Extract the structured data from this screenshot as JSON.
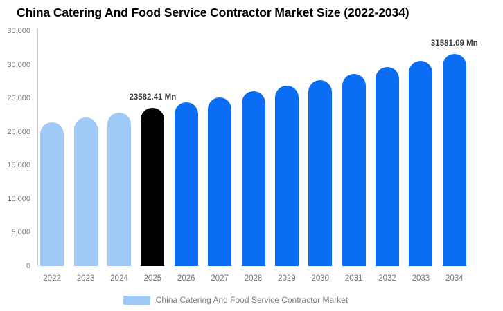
{
  "chart_data": {
    "type": "bar",
    "title": "China Catering And Food Service Contractor Market Size (2022-2034)",
    "categories": [
      "2022",
      "2023",
      "2024",
      "2025",
      "2026",
      "2027",
      "2028",
      "2029",
      "2030",
      "2031",
      "2032",
      "2033",
      "2034"
    ],
    "series": [
      {
        "name": "China Catering And Food Service Contractor Market",
        "values": [
          21394,
          22100,
          22829,
          23582.41,
          24360,
          25164,
          25994,
          26852,
          27738,
          28653,
          29599,
          30575,
          31581.09
        ]
      }
    ],
    "bar_colors": [
      "#9fcaf8",
      "#9fcaf8",
      "#9fcaf8",
      "#000000",
      "#0b6df4",
      "#0b6df4",
      "#0b6df4",
      "#0b6df4",
      "#0b6df4",
      "#0b6df4",
      "#0b6df4",
      "#0b6df4",
      "#0b6df4"
    ],
    "data_labels": [
      {
        "index": 3,
        "text": "23582.41 Mn"
      },
      {
        "index": 12,
        "text": "31581.09 Mn"
      }
    ],
    "ylim": [
      0,
      35000
    ],
    "ytick_step": 5000,
    "ytick_labels": [
      "0",
      "5,000",
      "10,000",
      "15,000",
      "20,000",
      "25,000",
      "30,000",
      "35,000"
    ],
    "grid": false,
    "legend_position": "bottom",
    "legend": [
      {
        "label": "China Catering And Food Service Contractor Market",
        "color": "#9fcaf8"
      }
    ],
    "colors": {
      "axis_line": "#cccccc",
      "axis_text": "#757575",
      "data_label_text": "#3c3c3c",
      "title_text": "#000000",
      "legend_text": "#7a7a7a"
    }
  }
}
